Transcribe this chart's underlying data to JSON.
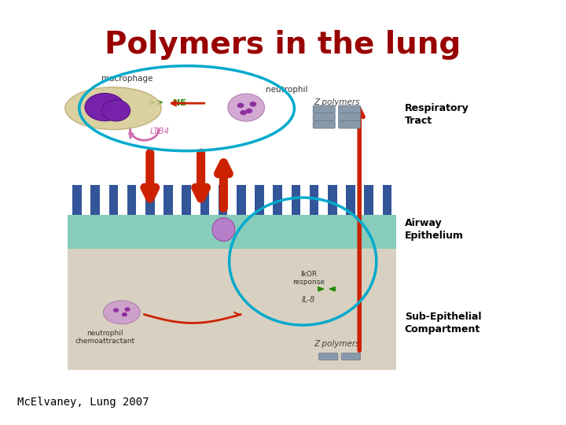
{
  "title": "Polymers in the lung",
  "title_color": "#990000",
  "title_fontsize": 28,
  "title_fontweight": "bold",
  "citation": "McElvaney, Lung 2007",
  "citation_fontsize": 10,
  "citation_color": "#000000",
  "bg_color": "#ffffff",
  "respiratory_tract_label": {
    "text": "Respiratory\nTract",
    "fontsize": 9,
    "fontweight": "bold"
  },
  "airway_epithelium_label": {
    "text": "Airway\nEpithelium",
    "fontsize": 9,
    "fontweight": "bold"
  },
  "subepithelial_label": {
    "text": "Sub-Epithelial\nCompartment",
    "fontsize": 9,
    "fontweight": "bold"
  },
  "cyan_color": "#00aacc",
  "red_color": "#cc2200",
  "green_color": "#228800",
  "purple_color": "#882299"
}
